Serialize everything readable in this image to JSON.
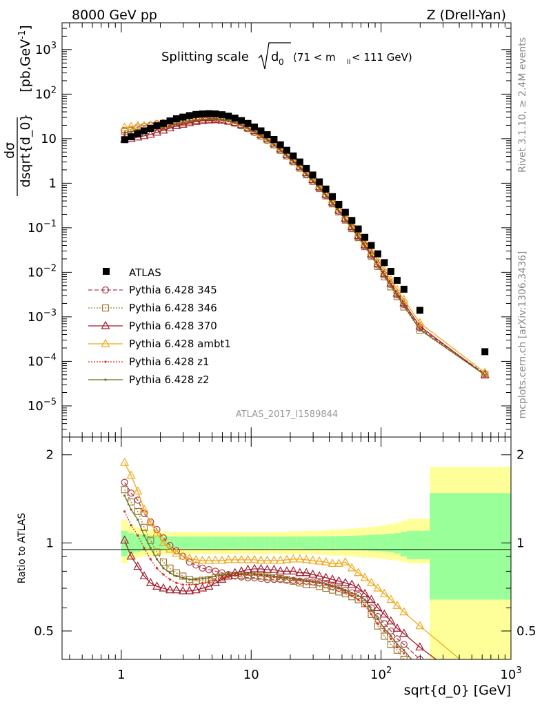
{
  "header": {
    "left": "8000 GeV pp",
    "right": "Z (Drell-Yan)",
    "plot_title": "Splitting scale",
    "plot_title_sym": "d",
    "plot_title_sub": "0",
    "plot_title_cut_pre": "(71 < m",
    "plot_title_cut_sub": "ll",
    "plot_title_cut_post": " < 111 GeV)",
    "side_rivet": "Rivet 3.1.10, ≥ 2.4M events",
    "side_mcplots": "mcplots.cern.ch [arXiv:1306.3436]",
    "analysis_id": "ATLAS_2017_I1589844"
  },
  "axes": {
    "ylabel_main_num": "dσ",
    "ylabel_main_den": "dsqrt{d_0}",
    "ylabel_main_unit": "[pb,GeV",
    "ylabel_ratio": "Ratio to ATLAS",
    "xlabel": "sqrt{d_0} [GeV]",
    "x_ticks": [
      "1",
      "10",
      "10²",
      "10³"
    ],
    "y_ticks_main": [
      {
        "v": 3,
        "mant": "10",
        "exp": "3"
      },
      {
        "v": 2,
        "mant": "10",
        "exp": "2"
      },
      {
        "v": 1,
        "mant": "10",
        "exp": ""
      },
      {
        "v": 0,
        "mant": "1",
        "exp": ""
      },
      {
        "v": -1,
        "mant": "10",
        "exp": "−1"
      },
      {
        "v": -2,
        "mant": "10",
        "exp": "−2"
      },
      {
        "v": -3,
        "mant": "10",
        "exp": "−3"
      },
      {
        "v": -4,
        "mant": "10",
        "exp": "−4"
      },
      {
        "v": -5,
        "mant": "10",
        "exp": "−5"
      }
    ],
    "y_ticks_ratio": [
      "0.5",
      "1",
      "2"
    ]
  },
  "chart_data": {
    "type": "scatter",
    "x_scale": "log",
    "xlim": [
      0.35,
      1000
    ],
    "main_ylim": [
      2e-06,
      4000
    ],
    "main_y_scale": "log",
    "ratio_ylim": [
      0.4,
      2.3
    ],
    "ratio_y_scale": "log",
    "x": [
      1.06,
      1.19,
      1.34,
      1.5,
      1.68,
      1.88,
      2.11,
      2.37,
      2.66,
      2.98,
      3.35,
      3.76,
      4.22,
      4.73,
      5.31,
      5.96,
      6.68,
      7.5,
      8.41,
      9.44,
      10.6,
      11.9,
      13.3,
      15.0,
      16.8,
      18.8,
      21.1,
      23.7,
      26.6,
      29.8,
      33.5,
      37.6,
      42.2,
      47.3,
      53.1,
      59.6,
      66.8,
      75.0,
      84.1,
      94.4,
      106,
      119,
      133,
      150,
      199,
      630
    ],
    "atlas": [
      9.5,
      11,
      13,
      15,
      17,
      19.5,
      22,
      25,
      28,
      30.5,
      33,
      35,
      36,
      36.5,
      36,
      34.5,
      32,
      29,
      25.5,
      22,
      18.3,
      15,
      12.3,
      9.6,
      7.3,
      5.5,
      4.1,
      3.0,
      2.15,
      1.53,
      1.07,
      0.74,
      0.5,
      0.335,
      0.222,
      0.146,
      0.094,
      0.061,
      0.04,
      0.026,
      0.0165,
      0.0105,
      0.0066,
      0.00417,
      0.0014,
      0.000165
    ],
    "atlas_band_edges": [
      1.0,
      1.12,
      1.26,
      1.41,
      1.59,
      1.78,
      2.0,
      2.24,
      2.51,
      2.82,
      3.16,
      3.55,
      3.98,
      4.47,
      5.01,
      5.62,
      6.31,
      7.08,
      7.94,
      8.91,
      10.0,
      11.2,
      12.6,
      14.1,
      15.9,
      17.8,
      20.0,
      22.4,
      25.1,
      28.2,
      31.6,
      35.5,
      39.8,
      44.7,
      50.1,
      56.2,
      63.1,
      70.8,
      79.4,
      89.1,
      100,
      112,
      126,
      141,
      158,
      237,
      1000
    ],
    "band_stat_lo": [
      0.9,
      0.92,
      0.93,
      0.94,
      0.945,
      0.95,
      0.955,
      0.955,
      0.955,
      0.955,
      0.955,
      0.955,
      0.955,
      0.955,
      0.955,
      0.955,
      0.955,
      0.955,
      0.955,
      0.955,
      0.955,
      0.955,
      0.955,
      0.955,
      0.955,
      0.955,
      0.955,
      0.955,
      0.953,
      0.953,
      0.953,
      0.952,
      0.95,
      0.95,
      0.948,
      0.946,
      0.944,
      0.942,
      0.94,
      0.938,
      0.935,
      0.93,
      0.92,
      0.9,
      0.88,
      0.64
    ],
    "band_stat_hi": [
      1.1,
      1.08,
      1.07,
      1.065,
      1.06,
      1.055,
      1.05,
      1.05,
      1.05,
      1.05,
      1.05,
      1.05,
      1.05,
      1.05,
      1.05,
      1.05,
      1.05,
      1.05,
      1.05,
      1.05,
      1.05,
      1.05,
      1.05,
      1.05,
      1.05,
      1.05,
      1.05,
      1.05,
      1.052,
      1.052,
      1.052,
      1.053,
      1.055,
      1.055,
      1.057,
      1.058,
      1.06,
      1.062,
      1.065,
      1.068,
      1.07,
      1.075,
      1.08,
      1.09,
      1.1,
      1.48
    ],
    "band_tot_lo": [
      0.85,
      0.88,
      0.89,
      0.9,
      0.905,
      0.91,
      0.91,
      0.915,
      0.915,
      0.915,
      0.915,
      0.915,
      0.915,
      0.915,
      0.915,
      0.915,
      0.915,
      0.915,
      0.915,
      0.915,
      0.915,
      0.915,
      0.915,
      0.915,
      0.915,
      0.915,
      0.915,
      0.915,
      0.913,
      0.913,
      0.91,
      0.91,
      0.905,
      0.905,
      0.9,
      0.9,
      0.895,
      0.89,
      0.89,
      0.885,
      0.88,
      0.875,
      0.87,
      0.86,
      0.85,
      0.4
    ],
    "band_tot_hi": [
      1.2,
      1.15,
      1.13,
      1.12,
      1.11,
      1.1,
      1.095,
      1.09,
      1.09,
      1.09,
      1.09,
      1.09,
      1.09,
      1.09,
      1.09,
      1.09,
      1.09,
      1.09,
      1.09,
      1.09,
      1.09,
      1.09,
      1.09,
      1.09,
      1.09,
      1.09,
      1.095,
      1.095,
      1.1,
      1.1,
      1.1,
      1.105,
      1.11,
      1.11,
      1.115,
      1.12,
      1.125,
      1.13,
      1.135,
      1.14,
      1.15,
      1.16,
      1.17,
      1.19,
      1.21,
      1.82
    ],
    "series": [
      {
        "name": "Pythia 6.428 345",
        "color": "#b03a48",
        "style": "dashed",
        "marker": "circle",
        "ratio": [
          1.61,
          1.48,
          1.4,
          1.26,
          1.18,
          1.11,
          1.04,
          0.98,
          0.94,
          0.9,
          0.86,
          0.84,
          0.82,
          0.81,
          0.8,
          0.79,
          0.78,
          0.77,
          0.765,
          0.76,
          0.76,
          0.755,
          0.75,
          0.75,
          0.75,
          0.745,
          0.745,
          0.74,
          0.74,
          0.735,
          0.73,
          0.72,
          0.71,
          0.7,
          0.69,
          0.675,
          0.66,
          0.64,
          0.6,
          0.56,
          0.53,
          0.5,
          0.47,
          0.45,
          0.4,
          0.32
        ]
      },
      {
        "name": "Pythia 6.428 346",
        "color": "#a07830",
        "style": "dotted",
        "marker": "square",
        "ratio": [
          1.52,
          1.38,
          1.28,
          1.13,
          1.02,
          0.93,
          0.86,
          0.82,
          0.79,
          0.77,
          0.75,
          0.74,
          0.745,
          0.75,
          0.76,
          0.765,
          0.77,
          0.775,
          0.775,
          0.775,
          0.775,
          0.77,
          0.765,
          0.76,
          0.755,
          0.75,
          0.74,
          0.73,
          0.72,
          0.72,
          0.71,
          0.7,
          0.69,
          0.68,
          0.67,
          0.655,
          0.64,
          0.62,
          0.57,
          0.52,
          0.48,
          0.45,
          0.43,
          0.4,
          0.36,
          0.3
        ]
      },
      {
        "name": "Pythia 6.428 370",
        "color": "#a01a2a",
        "style": "solid",
        "marker": "triangle",
        "ratio": [
          1.02,
          0.9,
          0.83,
          0.77,
          0.73,
          0.71,
          0.7,
          0.69,
          0.69,
          0.685,
          0.685,
          0.69,
          0.7,
          0.71,
          0.73,
          0.75,
          0.77,
          0.79,
          0.8,
          0.81,
          0.815,
          0.815,
          0.81,
          0.81,
          0.8,
          0.8,
          0.8,
          0.79,
          0.79,
          0.78,
          0.77,
          0.76,
          0.75,
          0.74,
          0.73,
          0.72,
          0.7,
          0.67,
          0.64,
          0.6,
          0.57,
          0.54,
          0.51,
          0.49,
          0.44,
          0.3
        ]
      },
      {
        "name": "Pythia 6.428 ambt1",
        "color": "#f0a818",
        "style": "solid",
        "marker": "triangle",
        "ratio": [
          1.88,
          1.7,
          1.5,
          1.3,
          1.17,
          1.08,
          1.0,
          0.95,
          0.92,
          0.9,
          0.885,
          0.875,
          0.87,
          0.87,
          0.87,
          0.87,
          0.875,
          0.875,
          0.875,
          0.875,
          0.875,
          0.87,
          0.87,
          0.87,
          0.87,
          0.875,
          0.88,
          0.88,
          0.875,
          0.87,
          0.865,
          0.86,
          0.85,
          0.85,
          0.86,
          0.82,
          0.79,
          0.76,
          0.73,
          0.7,
          0.67,
          0.64,
          0.61,
          0.58,
          0.52,
          0.34
        ]
      },
      {
        "name": "Pythia 6.428 z1",
        "color": "#e02818",
        "style": "dotted",
        "marker": "dot",
        "ratio": [
          1.28,
          1.15,
          1.06,
          0.96,
          0.88,
          0.82,
          0.78,
          0.75,
          0.73,
          0.72,
          0.72,
          0.72,
          0.73,
          0.74,
          0.75,
          0.76,
          0.77,
          0.775,
          0.78,
          0.78,
          0.78,
          0.775,
          0.77,
          0.765,
          0.76,
          0.755,
          0.75,
          0.745,
          0.74,
          0.735,
          0.73,
          0.72,
          0.71,
          0.7,
          0.68,
          0.66,
          0.64,
          0.61,
          0.57,
          0.53,
          0.5,
          0.47,
          0.44,
          0.42,
          0.38,
          0.3
        ]
      },
      {
        "name": "Pythia 6.428 z2",
        "color": "#6e6a1e",
        "style": "solid",
        "marker": "dot",
        "ratio": [
          1.45,
          1.3,
          1.2,
          1.06,
          0.96,
          0.88,
          0.82,
          0.79,
          0.77,
          0.76,
          0.75,
          0.75,
          0.755,
          0.76,
          0.77,
          0.775,
          0.78,
          0.785,
          0.785,
          0.785,
          0.785,
          0.78,
          0.775,
          0.77,
          0.765,
          0.76,
          0.755,
          0.75,
          0.745,
          0.74,
          0.735,
          0.725,
          0.715,
          0.705,
          0.69,
          0.675,
          0.66,
          0.64,
          0.59,
          0.55,
          0.51,
          0.48,
          0.45,
          0.43,
          0.37,
          0.3
        ]
      }
    ],
    "legend": {
      "title": "ATLAS",
      "placement": "lower-left"
    }
  }
}
